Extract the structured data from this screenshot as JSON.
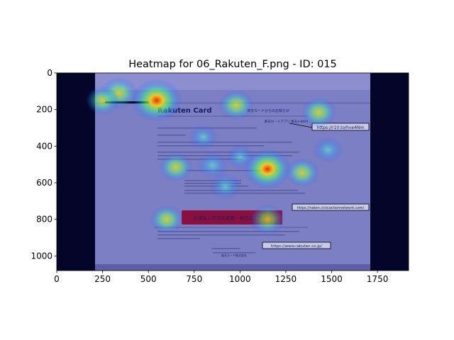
{
  "chart_data": {
    "type": "heatmap",
    "title": "Heatmap for 06_Rakuten_F.png - ID: 015",
    "xlabel": "",
    "ylabel": "",
    "xlim": [
      0,
      1920
    ],
    "ylim": [
      1080,
      0
    ],
    "x_ticks": [
      0,
      250,
      500,
      750,
      1000,
      1250,
      1500,
      1750
    ],
    "y_ticks": [
      0,
      200,
      400,
      600,
      800,
      1000
    ],
    "background_image": "06_Rakuten_F.png (email screenshot)",
    "colormap": "jet overlay on dark navy",
    "hotspots": [
      {
        "x": 545,
        "y": 150,
        "intensity": 1.0
      },
      {
        "x": 340,
        "y": 110,
        "intensity": 0.55
      },
      {
        "x": 250,
        "y": 150,
        "intensity": 0.45
      },
      {
        "x": 980,
        "y": 175,
        "intensity": 0.5
      },
      {
        "x": 1150,
        "y": 525,
        "intensity": 0.9
      },
      {
        "x": 650,
        "y": 515,
        "intensity": 0.45
      },
      {
        "x": 850,
        "y": 505,
        "intensity": 0.4
      },
      {
        "x": 920,
        "y": 620,
        "intensity": 0.4
      },
      {
        "x": 1340,
        "y": 545,
        "intensity": 0.45
      },
      {
        "x": 1150,
        "y": 800,
        "intensity": 0.5
      },
      {
        "x": 600,
        "y": 800,
        "intensity": 0.45
      },
      {
        "x": 1430,
        "y": 215,
        "intensity": 0.5
      },
      {
        "x": 1480,
        "y": 420,
        "intensity": 0.35
      },
      {
        "x": 1000,
        "y": 460,
        "intensity": 0.3
      },
      {
        "x": 800,
        "y": 350,
        "intensity": 0.3
      }
    ]
  },
  "email": {
    "logo": "Rakuten Card",
    "header_right": "楽天カードからのお知らせ",
    "app_link": "楽天カードアプリ 楽天e-NAVI",
    "button_label": "お支払い方法の変更・修正はこちら ›",
    "footer_company": "楽天カード株式会社"
  },
  "annotations": {
    "url1": "https://r10.to/hve4Nm",
    "url2": "https://raken.civicactionnetwork.com/",
    "url3": "https://www.rakuten.co.jp/"
  }
}
